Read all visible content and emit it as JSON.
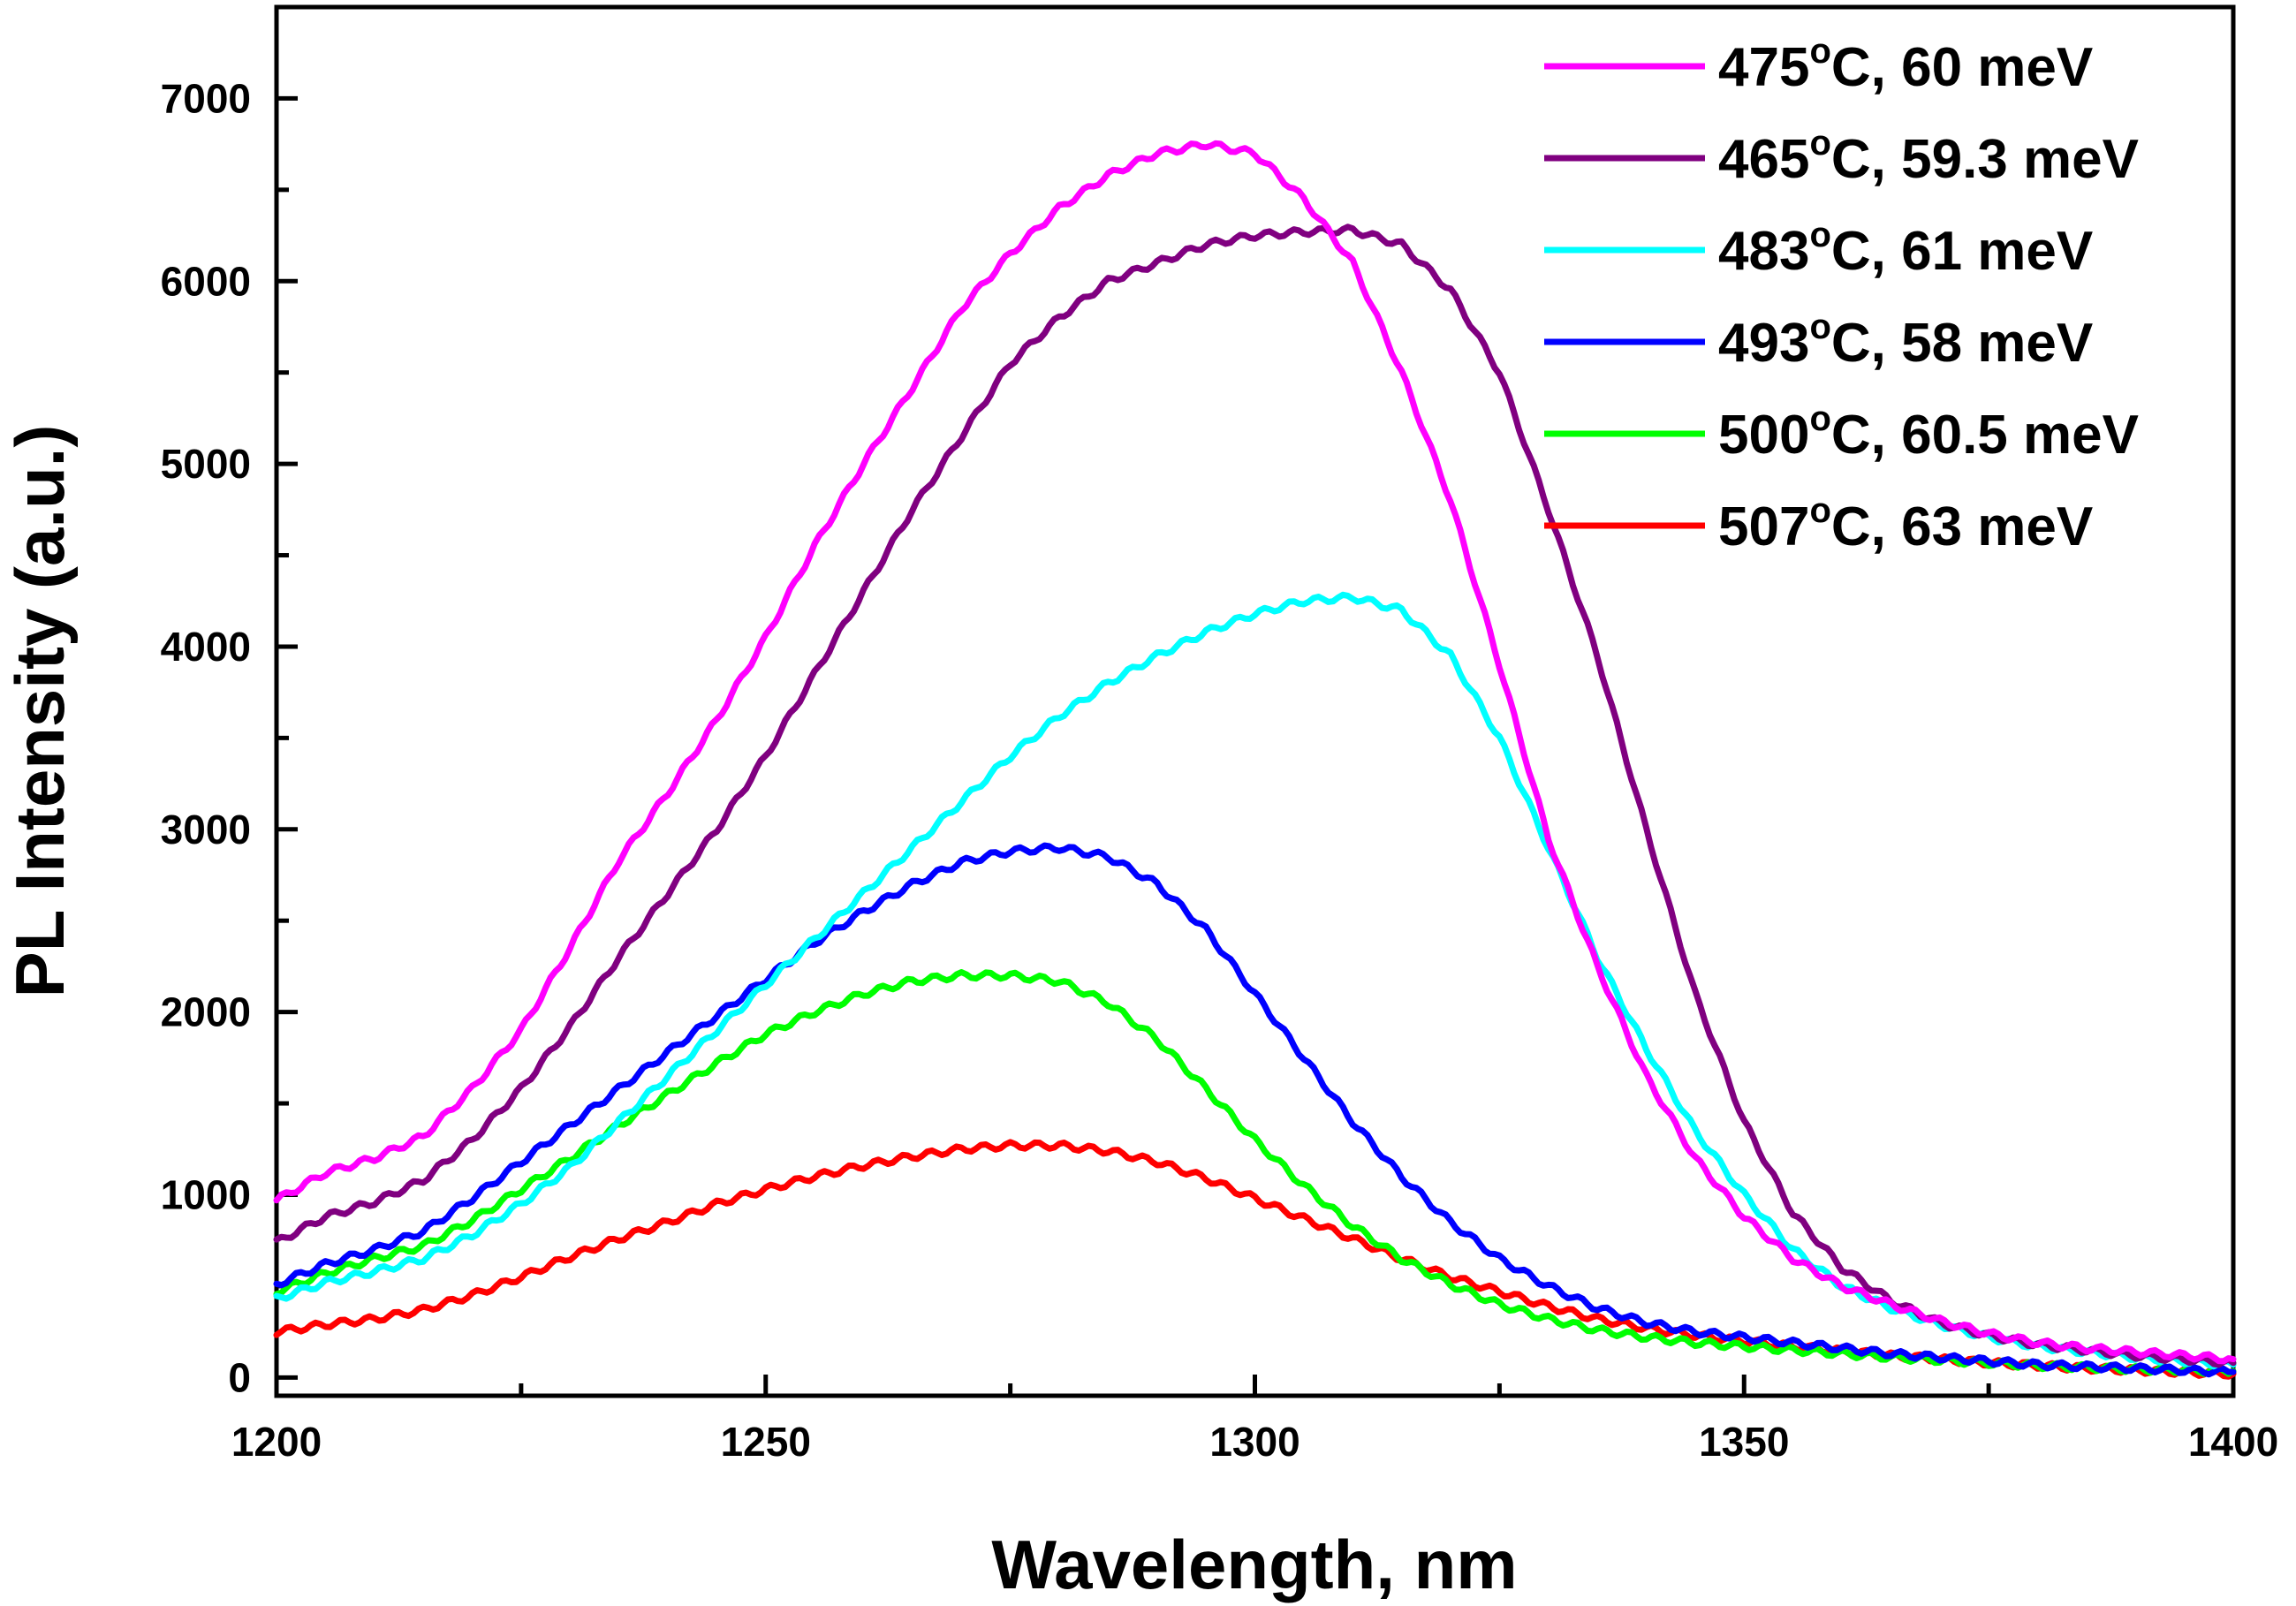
{
  "chart_data": {
    "type": "line",
    "title": "",
    "xlabel": "Wavelength, nm",
    "ylabel": "PL Intensity (a.u.)",
    "xlim": [
      1200,
      1400
    ],
    "ylim": [
      -100,
      7500
    ],
    "xticks": [
      1200,
      1250,
      1300,
      1350,
      1400
    ],
    "yticks": [
      0,
      1000,
      2000,
      3000,
      4000,
      5000,
      6000,
      7000
    ],
    "legend_position": "top-right",
    "grid": false,
    "x": [
      1200,
      1205,
      1210,
      1215,
      1220,
      1225,
      1230,
      1235,
      1240,
      1245,
      1250,
      1255,
      1260,
      1265,
      1270,
      1275,
      1280,
      1285,
      1290,
      1295,
      1300,
      1305,
      1310,
      1315,
      1320,
      1325,
      1330,
      1335,
      1340,
      1345,
      1350,
      1355,
      1360,
      1365,
      1370,
      1375,
      1380,
      1385,
      1390,
      1395,
      1400
    ],
    "series": [
      {
        "name": "475°C, 60 meV",
        "temp": "475",
        "rest": "C, 60 meV",
        "color": "#ff00ff",
        "values": [
          970,
          1120,
          1200,
          1320,
          1580,
          1900,
          2350,
          2830,
          3200,
          3600,
          4050,
          4550,
          5000,
          5420,
          5850,
          6150,
          6400,
          6580,
          6700,
          6750,
          6700,
          6450,
          6100,
          5500,
          4800,
          3900,
          2950,
          2250,
          1650,
          1200,
          880,
          650,
          500,
          400,
          310,
          240,
          190,
          160,
          140,
          120,
          100
        ]
      },
      {
        "name": "465°C, 59.3 meV",
        "temp": "465",
        "rest": "C, 59.3 meV",
        "color": "#800080",
        "values": [
          740,
          880,
          960,
          1080,
          1300,
          1580,
          1920,
          2300,
          2650,
          3000,
          3400,
          3850,
          4300,
          4750,
          5150,
          5550,
          5800,
          6000,
          6100,
          6200,
          6250,
          6270,
          6280,
          6200,
          5950,
          5500,
          4750,
          3950,
          3000,
          2100,
          1400,
          900,
          600,
          420,
          300,
          230,
          180,
          150,
          120,
          100,
          80
        ]
      },
      {
        "name": "483°C, 61 meV",
        "temp": "483",
        "rest": "C, 61 meV",
        "color": "#00ffff",
        "values": [
          430,
          520,
          580,
          650,
          780,
          950,
          1150,
          1400,
          1650,
          1900,
          2150,
          2400,
          2650,
          2900,
          3150,
          3400,
          3620,
          3800,
          3950,
          4080,
          4180,
          4250,
          4270,
          4200,
          3950,
          3500,
          2900,
          2300,
          1800,
          1350,
          1000,
          700,
          500,
          380,
          290,
          220,
          170,
          140,
          110,
          90,
          70
        ]
      },
      {
        "name": "493°C, 58 meV",
        "temp": "493",
        "rest": "C, 58 meV",
        "color": "#0000ff",
        "values": [
          510,
          620,
          700,
          800,
          980,
          1180,
          1380,
          1580,
          1780,
          1980,
          2180,
          2380,
          2550,
          2700,
          2820,
          2880,
          2900,
          2850,
          2700,
          2450,
          2100,
          1750,
          1400,
          1100,
          850,
          650,
          500,
          380,
          300,
          250,
          220,
          190,
          160,
          130,
          110,
          90,
          70,
          60,
          50,
          40,
          30
        ]
      },
      {
        "name": "500°C, 60.5 meV",
        "temp": "500",
        "rest": "C, 60.5 meV",
        "color": "#00ff00",
        "values": [
          470,
          570,
          650,
          720,
          860,
          1030,
          1200,
          1380,
          1550,
          1720,
          1880,
          2000,
          2100,
          2170,
          2200,
          2200,
          2170,
          2050,
          1850,
          1580,
          1300,
          1050,
          830,
          650,
          510,
          400,
          320,
          260,
          220,
          190,
          170,
          150,
          130,
          110,
          95,
          80,
          65,
          55,
          45,
          40,
          35
        ]
      },
      {
        "name": "507°C, 63 meV",
        "temp": "507",
        "rest": "C, 63 meV",
        "color": "#ff0000",
        "values": [
          250,
          290,
          320,
          370,
          450,
          550,
          660,
          760,
          850,
          950,
          1030,
          1100,
          1160,
          1210,
          1250,
          1270,
          1270,
          1240,
          1180,
          1090,
          980,
          870,
          760,
          650,
          550,
          470,
          390,
          320,
          270,
          230,
          200,
          170,
          145,
          120,
          100,
          80,
          65,
          50,
          40,
          30,
          20
        ]
      }
    ]
  }
}
